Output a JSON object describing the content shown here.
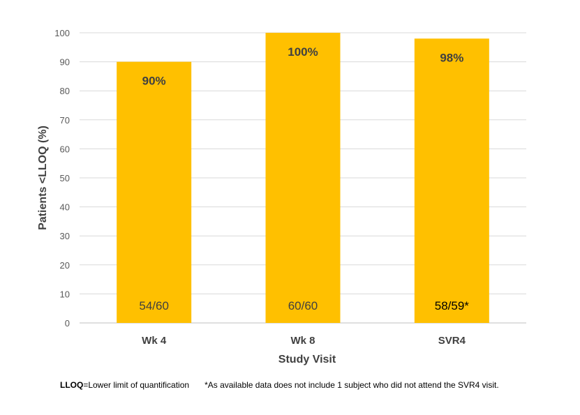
{
  "chart_data": {
    "type": "bar",
    "categories": [
      "Wk 4",
      "Wk 8",
      "SVR4"
    ],
    "values": [
      90,
      100,
      98
    ],
    "value_labels": [
      "90%",
      "100%",
      "98%"
    ],
    "count_labels": [
      "54/60",
      "60/60",
      "58/59*"
    ],
    "xlabel": "Study Visit",
    "ylabel": "Patients <LLOQ (%)",
    "ylim": [
      0,
      100
    ],
    "yticks": [
      0,
      10,
      20,
      30,
      40,
      50,
      60,
      70,
      80,
      90,
      100
    ],
    "grid": true,
    "bar_color": "#FFC000",
    "grid_color": "#D9D9D9"
  },
  "footnote": {
    "abbr": "LLOQ",
    "definition": "=Lower limit of quantification",
    "note": "*As available data does not include 1 subject who did not attend  the SVR4 visit."
  }
}
